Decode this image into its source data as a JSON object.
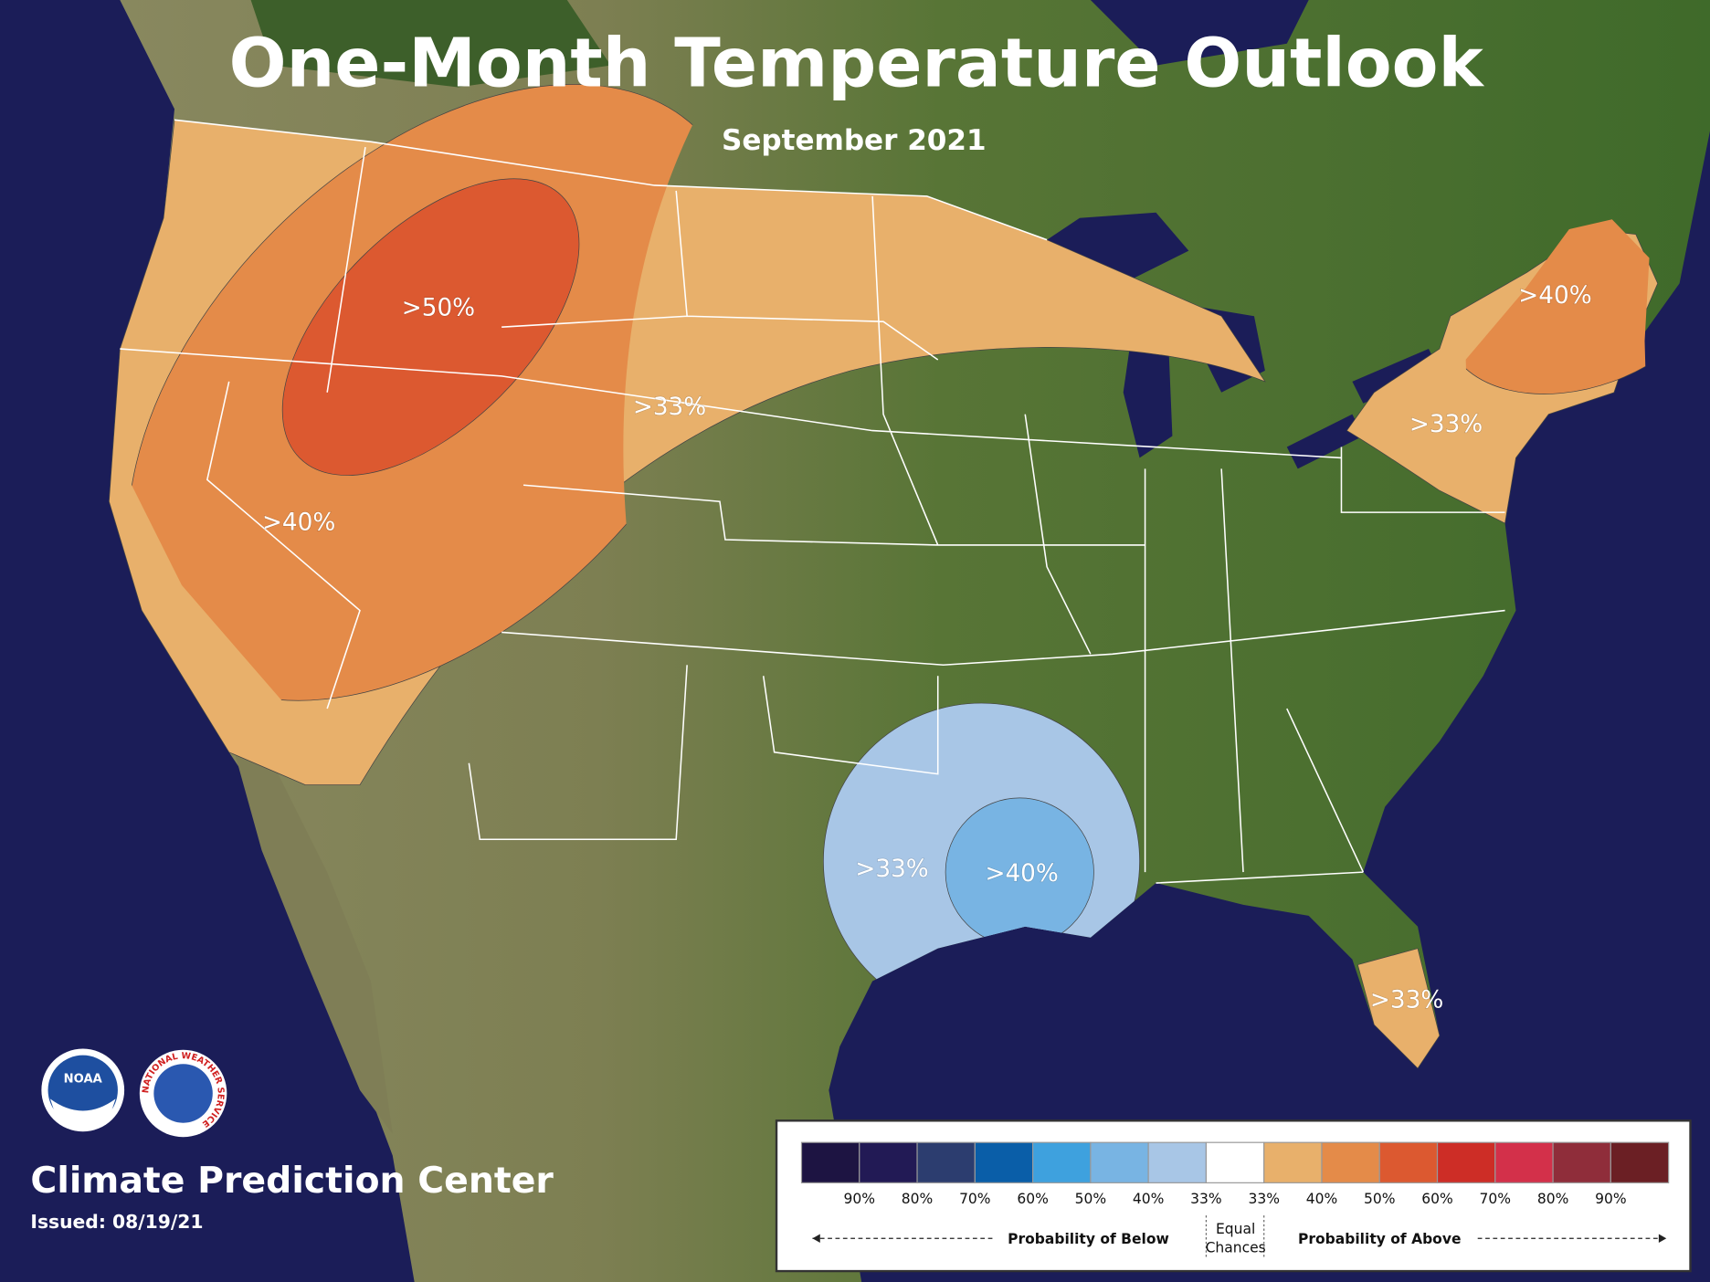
{
  "title": "One-Month Temperature Outlook",
  "subtitle": "September 2021",
  "map_labels": [
    ">50%",
    ">33%",
    ">40%",
    ">40%",
    ">33%",
    ">33%",
    ">40%",
    ">33%"
  ],
  "legend": {
    "colors": [
      "#1d1442",
      "#221a55",
      "#2c3d6f",
      "#0a5ea8",
      "#3ea1de",
      "#78b4e3",
      "#a8c6e6",
      "#ffffff",
      "#e8b06b",
      "#e48b49",
      "#dc5930",
      "#cd2d26",
      "#d3304a",
      "#8f2d3a",
      "#6b1f24"
    ],
    "labels": [
      "90%",
      "80%",
      "70%",
      "60%",
      "50%",
      "40%",
      "33%",
      "33%",
      "40%",
      "50%",
      "60%",
      "70%",
      "80%",
      "90%"
    ],
    "below": "Probability of Below",
    "equal": [
      "Equal",
      "Chances"
    ],
    "above": "Probability of Above"
  },
  "footer": {
    "agency": "Climate Prediction Center",
    "issued": "Issued: 08/19/21"
  },
  "logos": {
    "noaa": "NOAA",
    "nws": "NATIONAL WEATHER SERVICE"
  }
}
